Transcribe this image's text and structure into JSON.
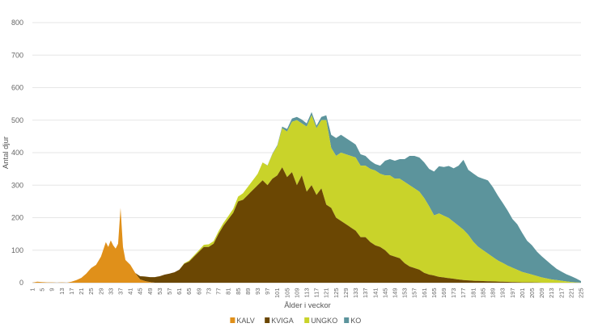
{
  "chart_data": {
    "type": "area",
    "stacked": true,
    "xlabel": "Ålder i veckor",
    "ylabel": "Antal djur",
    "ylim": [
      0,
      800
    ],
    "yticks": [
      0,
      100,
      200,
      300,
      400,
      500,
      600,
      700,
      800
    ],
    "xlim": [
      1,
      225
    ],
    "xticks": [
      1,
      5,
      9,
      13,
      17,
      21,
      25,
      29,
      33,
      37,
      41,
      45,
      49,
      53,
      57,
      61,
      65,
      69,
      73,
      77,
      81,
      85,
      89,
      93,
      97,
      101,
      105,
      109,
      113,
      117,
      121,
      125,
      129,
      133,
      137,
      141,
      145,
      149,
      153,
      157,
      161,
      165,
      169,
      173,
      177,
      181,
      185,
      189,
      193,
      197,
      201,
      205,
      209,
      213,
      217,
      221,
      225
    ],
    "grid": "horizontal",
    "legend_position": "bottom",
    "series": [
      {
        "name": "KALV",
        "color": "#E0901A",
        "points": [
          [
            1,
            0
          ],
          [
            3,
            3
          ],
          [
            5,
            2
          ],
          [
            7,
            1
          ],
          [
            9,
            1
          ],
          [
            11,
            0
          ],
          [
            13,
            1
          ],
          [
            15,
            0
          ],
          [
            17,
            3
          ],
          [
            19,
            8
          ],
          [
            21,
            15
          ],
          [
            23,
            28
          ],
          [
            25,
            45
          ],
          [
            27,
            55
          ],
          [
            29,
            80
          ],
          [
            31,
            125
          ],
          [
            32,
            110
          ],
          [
            33,
            130
          ],
          [
            34,
            115
          ],
          [
            35,
            105
          ],
          [
            36,
            120
          ],
          [
            37,
            230
          ],
          [
            38,
            110
          ],
          [
            39,
            70
          ],
          [
            41,
            55
          ],
          [
            43,
            30
          ],
          [
            45,
            10
          ],
          [
            47,
            5
          ],
          [
            49,
            2
          ],
          [
            51,
            0
          ],
          [
            225,
            0
          ]
        ]
      },
      {
        "name": "KVIGA",
        "color": "#6B4703",
        "points": [
          [
            1,
            0
          ],
          [
            43,
            0
          ],
          [
            45,
            10
          ],
          [
            47,
            14
          ],
          [
            49,
            15
          ],
          [
            51,
            17
          ],
          [
            53,
            20
          ],
          [
            55,
            25
          ],
          [
            57,
            28
          ],
          [
            59,
            32
          ],
          [
            61,
            40
          ],
          [
            63,
            58
          ],
          [
            65,
            65
          ],
          [
            67,
            80
          ],
          [
            69,
            95
          ],
          [
            71,
            110
          ],
          [
            73,
            110
          ],
          [
            75,
            120
          ],
          [
            77,
            150
          ],
          [
            79,
            175
          ],
          [
            81,
            195
          ],
          [
            83,
            215
          ],
          [
            85,
            250
          ],
          [
            87,
            255
          ],
          [
            89,
            270
          ],
          [
            91,
            285
          ],
          [
            93,
            300
          ],
          [
            95,
            315
          ],
          [
            97,
            300
          ],
          [
            99,
            320
          ],
          [
            101,
            330
          ],
          [
            103,
            355
          ],
          [
            105,
            325
          ],
          [
            107,
            340
          ],
          [
            109,
            300
          ],
          [
            111,
            330
          ],
          [
            113,
            280
          ],
          [
            115,
            300
          ],
          [
            117,
            270
          ],
          [
            119,
            290
          ],
          [
            121,
            240
          ],
          [
            123,
            230
          ],
          [
            125,
            200
          ],
          [
            127,
            190
          ],
          [
            129,
            180
          ],
          [
            131,
            170
          ],
          [
            133,
            160
          ],
          [
            135,
            140
          ],
          [
            137,
            140
          ],
          [
            139,
            125
          ],
          [
            141,
            115
          ],
          [
            143,
            110
          ],
          [
            145,
            100
          ],
          [
            147,
            85
          ],
          [
            149,
            80
          ],
          [
            151,
            75
          ],
          [
            153,
            60
          ],
          [
            155,
            50
          ],
          [
            157,
            45
          ],
          [
            159,
            40
          ],
          [
            161,
            30
          ],
          [
            163,
            25
          ],
          [
            165,
            22
          ],
          [
            167,
            18
          ],
          [
            169,
            16
          ],
          [
            171,
            14
          ],
          [
            173,
            12
          ],
          [
            175,
            10
          ],
          [
            177,
            8
          ],
          [
            181,
            6
          ],
          [
            185,
            5
          ],
          [
            189,
            4
          ],
          [
            193,
            3
          ],
          [
            197,
            2
          ],
          [
            201,
            1
          ],
          [
            205,
            1
          ],
          [
            209,
            0
          ],
          [
            225,
            0
          ]
        ]
      },
      {
        "name": "UNGKO",
        "color": "#C9D32A",
        "points": [
          [
            1,
            0
          ],
          [
            61,
            0
          ],
          [
            63,
            2
          ],
          [
            65,
            3
          ],
          [
            69,
            5
          ],
          [
            73,
            8
          ],
          [
            77,
            8
          ],
          [
            81,
            10
          ],
          [
            83,
            12
          ],
          [
            85,
            15
          ],
          [
            87,
            20
          ],
          [
            89,
            25
          ],
          [
            91,
            30
          ],
          [
            93,
            35
          ],
          [
            95,
            55
          ],
          [
            97,
            60
          ],
          [
            99,
            75
          ],
          [
            101,
            90
          ],
          [
            103,
            120
          ],
          [
            105,
            140
          ],
          [
            107,
            155
          ],
          [
            109,
            200
          ],
          [
            111,
            160
          ],
          [
            113,
            200
          ],
          [
            115,
            215
          ],
          [
            117,
            205
          ],
          [
            119,
            210
          ],
          [
            121,
            260
          ],
          [
            123,
            185
          ],
          [
            125,
            190
          ],
          [
            127,
            210
          ],
          [
            129,
            215
          ],
          [
            131,
            220
          ],
          [
            133,
            225
          ],
          [
            135,
            220
          ],
          [
            137,
            220
          ],
          [
            139,
            225
          ],
          [
            141,
            230
          ],
          [
            143,
            225
          ],
          [
            145,
            230
          ],
          [
            147,
            245
          ],
          [
            149,
            240
          ],
          [
            151,
            245
          ],
          [
            153,
            250
          ],
          [
            155,
            250
          ],
          [
            157,
            245
          ],
          [
            159,
            240
          ],
          [
            161,
            230
          ],
          [
            163,
            210
          ],
          [
            165,
            185
          ],
          [
            167,
            195
          ],
          [
            169,
            190
          ],
          [
            171,
            185
          ],
          [
            173,
            175
          ],
          [
            175,
            165
          ],
          [
            177,
            155
          ],
          [
            179,
            140
          ],
          [
            181,
            120
          ],
          [
            183,
            105
          ],
          [
            185,
            95
          ],
          [
            187,
            85
          ],
          [
            189,
            75
          ],
          [
            191,
            65
          ],
          [
            193,
            58
          ],
          [
            195,
            50
          ],
          [
            197,
            44
          ],
          [
            199,
            38
          ],
          [
            201,
            32
          ],
          [
            203,
            28
          ],
          [
            205,
            24
          ],
          [
            207,
            20
          ],
          [
            209,
            16
          ],
          [
            211,
            13
          ],
          [
            213,
            10
          ],
          [
            215,
            8
          ],
          [
            217,
            6
          ],
          [
            219,
            4
          ],
          [
            221,
            2
          ],
          [
            223,
            1
          ],
          [
            225,
            0
          ]
        ]
      },
      {
        "name": "KO",
        "color": "#5C949C",
        "points": [
          [
            1,
            0
          ],
          [
            95,
            0
          ],
          [
            101,
            3
          ],
          [
            103,
            5
          ],
          [
            105,
            8
          ],
          [
            107,
            10
          ],
          [
            109,
            10
          ],
          [
            111,
            12
          ],
          [
            113,
            10
          ],
          [
            115,
            10
          ],
          [
            117,
            8
          ],
          [
            119,
            10
          ],
          [
            121,
            15
          ],
          [
            123,
            40
          ],
          [
            125,
            55
          ],
          [
            127,
            55
          ],
          [
            129,
            50
          ],
          [
            131,
            45
          ],
          [
            133,
            40
          ],
          [
            135,
            35
          ],
          [
            137,
            30
          ],
          [
            139,
            25
          ],
          [
            141,
            20
          ],
          [
            143,
            25
          ],
          [
            145,
            45
          ],
          [
            147,
            50
          ],
          [
            149,
            55
          ],
          [
            151,
            60
          ],
          [
            153,
            70
          ],
          [
            155,
            90
          ],
          [
            157,
            100
          ],
          [
            159,
            105
          ],
          [
            161,
            110
          ],
          [
            163,
            115
          ],
          [
            165,
            135
          ],
          [
            167,
            145
          ],
          [
            169,
            150
          ],
          [
            171,
            160
          ],
          [
            173,
            165
          ],
          [
            175,
            185
          ],
          [
            177,
            215
          ],
          [
            179,
            200
          ],
          [
            181,
            210
          ],
          [
            183,
            215
          ],
          [
            185,
            220
          ],
          [
            187,
            225
          ],
          [
            189,
            215
          ],
          [
            191,
            200
          ],
          [
            193,
            185
          ],
          [
            195,
            170
          ],
          [
            197,
            150
          ],
          [
            199,
            140
          ],
          [
            201,
            120
          ],
          [
            203,
            100
          ],
          [
            205,
            90
          ],
          [
            207,
            75
          ],
          [
            209,
            65
          ],
          [
            211,
            55
          ],
          [
            213,
            45
          ],
          [
            215,
            35
          ],
          [
            217,
            28
          ],
          [
            219,
            22
          ],
          [
            221,
            18
          ],
          [
            223,
            12
          ],
          [
            225,
            5
          ]
        ]
      }
    ]
  }
}
